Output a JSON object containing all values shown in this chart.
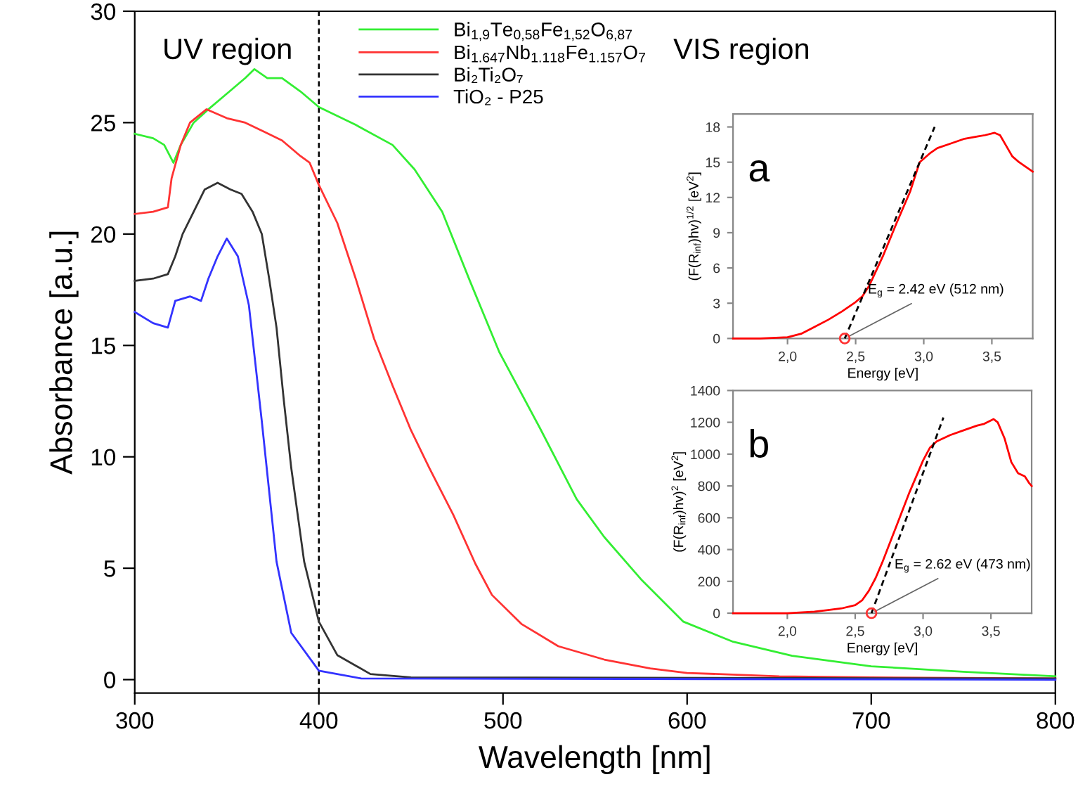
{
  "chart_data": [
    {
      "type": "line",
      "xlabel": "Wavelength [nm]",
      "ylabel": "Absorbance [a.u.]",
      "xlim": [
        300,
        800
      ],
      "xticks": [
        300,
        400,
        500,
        600,
        700,
        800
      ],
      "ylim": [
        -0.6,
        30
      ],
      "yticks": [
        0,
        5,
        10,
        15,
        20,
        25,
        30
      ],
      "legend": "top",
      "annotations": [
        "UV region",
        "VIS region"
      ],
      "ref_lines": [
        {
          "axis": "x",
          "value": 400,
          "color": "#000000",
          "line_style": "dashed"
        }
      ],
      "series": [
        {
          "name": "Bi$_{1,9}$Te$_{0,58}$Fe$_{1,52}$O$_{6,87}$",
          "color": "#33ee33",
          "x": [
            300,
            310,
            316,
            321,
            325,
            332,
            340,
            350,
            360,
            365,
            372,
            380,
            390,
            400,
            420,
            440,
            452,
            467,
            482,
            498,
            520,
            540,
            555,
            575,
            598,
            625,
            657,
            700,
            750,
            800
          ],
          "values": [
            24.5,
            24.3,
            24.0,
            23.2,
            24.0,
            25.0,
            25.6,
            26.3,
            27.0,
            27.4,
            27.0,
            27.0,
            26.4,
            25.7,
            24.9,
            24.0,
            22.9,
            21.0,
            17.9,
            14.7,
            11.3,
            8.1,
            6.4,
            4.5,
            2.6,
            1.7,
            1.07,
            0.6,
            0.35,
            0.15
          ]
        },
        {
          "name": "Bi$_{1.647}$Nb$_{1.118}$Fe$_{1.157}$O$_{7}$",
          "color": "#ff3333",
          "x": [
            300,
            310,
            318,
            320,
            325,
            330,
            339,
            350,
            360,
            370,
            380,
            390,
            395,
            400,
            410,
            420,
            430,
            440,
            450,
            460,
            473,
            485,
            494,
            510,
            530,
            555,
            580,
            600,
            650,
            700,
            800
          ],
          "values": [
            20.9,
            21.0,
            21.2,
            22.5,
            24.0,
            25.0,
            25.6,
            25.2,
            25.0,
            24.6,
            24.2,
            23.5,
            23.2,
            22.2,
            20.5,
            18.0,
            15.3,
            13.2,
            11.2,
            9.5,
            7.4,
            5.2,
            3.8,
            2.5,
            1.5,
            0.9,
            0.5,
            0.3,
            0.15,
            0.1,
            0.05
          ]
        },
        {
          "name": "Bi₂Ti₂O₇",
          "color": "#333333",
          "x": [
            300,
            310,
            318,
            322,
            326,
            332,
            338,
            345,
            352,
            358,
            364,
            369,
            373,
            377,
            381,
            385,
            392,
            400,
            410,
            428,
            450,
            800
          ],
          "values": [
            17.9,
            18.0,
            18.2,
            19.0,
            20.0,
            21.0,
            22.0,
            22.3,
            22.0,
            21.8,
            21.0,
            20.0,
            18.0,
            15.8,
            12.5,
            9.5,
            5.3,
            2.6,
            1.1,
            0.25,
            0.1,
            0.05
          ]
        },
        {
          "name": "TiO₂ - P25",
          "color": "#3333ff",
          "x": [
            300,
            310,
            318,
            322,
            330,
            336,
            340,
            345,
            350,
            356,
            362,
            369,
            377,
            385,
            400,
            423,
            800
          ],
          "values": [
            16.5,
            16.0,
            15.8,
            17.0,
            17.2,
            17.0,
            18.0,
            19.0,
            19.8,
            19.0,
            16.8,
            11.6,
            5.3,
            2.1,
            0.4,
            0.05,
            0.0
          ]
        }
      ]
    },
    {
      "type": "line",
      "xlabel": "Energy [eV]",
      "ylabel": "(F(R$_{inf}$)hv)$^{1/2}$ [eV$^{2}$]",
      "xlim": [
        1.6,
        3.8
      ],
      "xticks": [
        {
          "value": 2.0,
          "label": "2,0"
        },
        {
          "value": 2.5,
          "label": "2,5"
        },
        {
          "value": 3.0,
          "label": "3,0"
        },
        {
          "value": 3.5,
          "label": "3,5"
        }
      ],
      "ylim": [
        0,
        19.1
      ],
      "yticks": [
        0,
        3,
        6,
        9,
        12,
        15,
        18
      ],
      "annotations": [
        "a",
        {
          "text": "E$_{g}$ = 2.42 eV (512 nm)",
          "x": 2.42,
          "y": 0
        }
      ],
      "series": [
        {
          "color": "#ff0000",
          "x": [
            1.6,
            1.8,
            2.0,
            2.1,
            2.2,
            2.3,
            2.4,
            2.5,
            2.55,
            2.6,
            2.7,
            2.8,
            2.9,
            2.97,
            3.05,
            3.1,
            3.2,
            3.3,
            3.4,
            3.45,
            3.52,
            3.56,
            3.6,
            3.65,
            3.7,
            3.75,
            3.8
          ],
          "values": [
            0.0,
            0.0,
            0.1,
            0.4,
            1.0,
            1.6,
            2.3,
            3.1,
            3.6,
            4.5,
            7.0,
            9.8,
            12.5,
            15.0,
            15.8,
            16.2,
            16.6,
            17.0,
            17.2,
            17.3,
            17.5,
            17.3,
            16.5,
            15.5,
            15.0,
            14.6,
            14.2
          ]
        },
        {
          "color": "#000000",
          "line_style": "dashed",
          "x": [
            2.42,
            3.08
          ],
          "values": [
            0,
            18
          ]
        },
        {
          "type": "scatter",
          "color": "#ff3333",
          "marker": "circle",
          "x": [
            2.42
          ],
          "values": [
            0
          ]
        }
      ]
    },
    {
      "type": "line",
      "xlabel": "Energy [eV]",
      "ylabel": "(F(R$_{inf}$)hv)$^{2}$ [eV$^{2}$]",
      "xlim": [
        1.6,
        3.8
      ],
      "xticks": [
        {
          "value": 2.0,
          "label": "2,0"
        },
        {
          "value": 2.5,
          "label": "2,5"
        },
        {
          "value": 3.0,
          "label": "3,0"
        },
        {
          "value": 3.5,
          "label": "3,5"
        }
      ],
      "ylim": [
        0,
        1400
      ],
      "yticks": [
        0,
        200,
        400,
        600,
        800,
        1000,
        1200,
        1400
      ],
      "annotations": [
        "b",
        {
          "text": "E$_{g}$ = 2.62 eV (473 nm)",
          "x": 2.62,
          "y": 0
        }
      ],
      "series": [
        {
          "color": "#ff0000",
          "x": [
            1.6,
            2.0,
            2.2,
            2.3,
            2.4,
            2.5,
            2.55,
            2.6,
            2.65,
            2.7,
            2.8,
            2.9,
            3.0,
            3.05,
            3.1,
            3.2,
            3.3,
            3.4,
            3.45,
            3.52,
            3.55,
            3.6,
            3.65,
            3.7,
            3.75,
            3.78,
            3.8
          ],
          "values": [
            0,
            0,
            10,
            20,
            30,
            50,
            80,
            140,
            220,
            320,
            540,
            760,
            960,
            1040,
            1080,
            1120,
            1150,
            1180,
            1190,
            1220,
            1200,
            1100,
            950,
            880,
            860,
            820,
            800
          ]
        },
        {
          "color": "#000000",
          "line_style": "dashed",
          "x": [
            2.62,
            3.15
          ],
          "values": [
            0,
            1230
          ]
        },
        {
          "type": "scatter",
          "color": "#ff3333",
          "marker": "circle",
          "x": [
            2.62
          ],
          "values": [
            0
          ]
        }
      ]
    }
  ]
}
